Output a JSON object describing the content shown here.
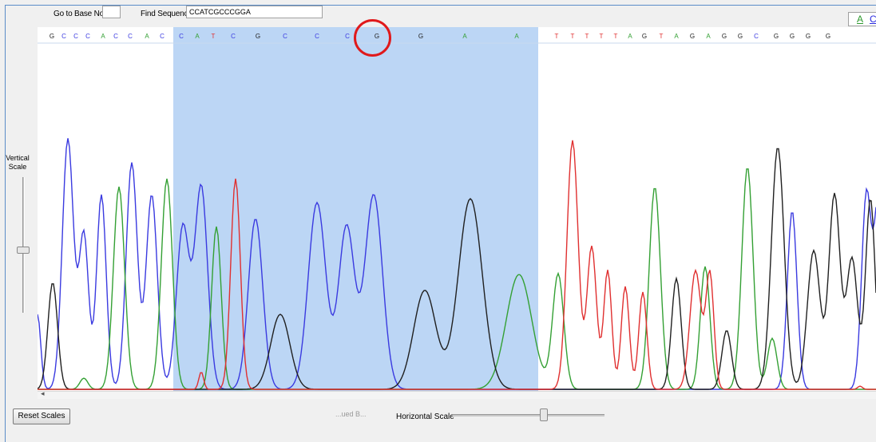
{
  "toolbar": {
    "go_to_base_label": "Go to Base No.",
    "go_to_base_value": "",
    "find_sequence_label": "Find Sequence",
    "find_sequence_value": "CCATCGCCCGGA",
    "legend_buttons": [
      {
        "label": "A",
        "color": "#2e9a2e"
      },
      {
        "label": "C",
        "color": "#2a2ae0"
      }
    ]
  },
  "chromatogram": {
    "base_colors": {
      "A": "#34a034",
      "C": "#3a3ae0",
      "G": "#202020",
      "T": "#e03030"
    },
    "base_calls": [
      "G",
      "C",
      "C",
      "C",
      "A",
      "C",
      "C",
      "A",
      "C",
      "C",
      "A",
      "T",
      "C",
      "G",
      "C",
      "C",
      "C",
      "G",
      "G",
      "A",
      "A",
      "T",
      "T",
      "T",
      "T",
      "T",
      "A",
      "G",
      "T",
      "A",
      "G",
      "A",
      "G",
      "G",
      "C",
      "G",
      "G",
      "G",
      "G"
    ],
    "selection_color": "#bcd6f5"
  },
  "vertical_scale": {
    "label": "Vertical Scale"
  },
  "horizontal_scale": {
    "label": "Horizontal Scale",
    "ghost_text": "...ued B..."
  },
  "reset_button": {
    "label": "Reset Scales"
  }
}
